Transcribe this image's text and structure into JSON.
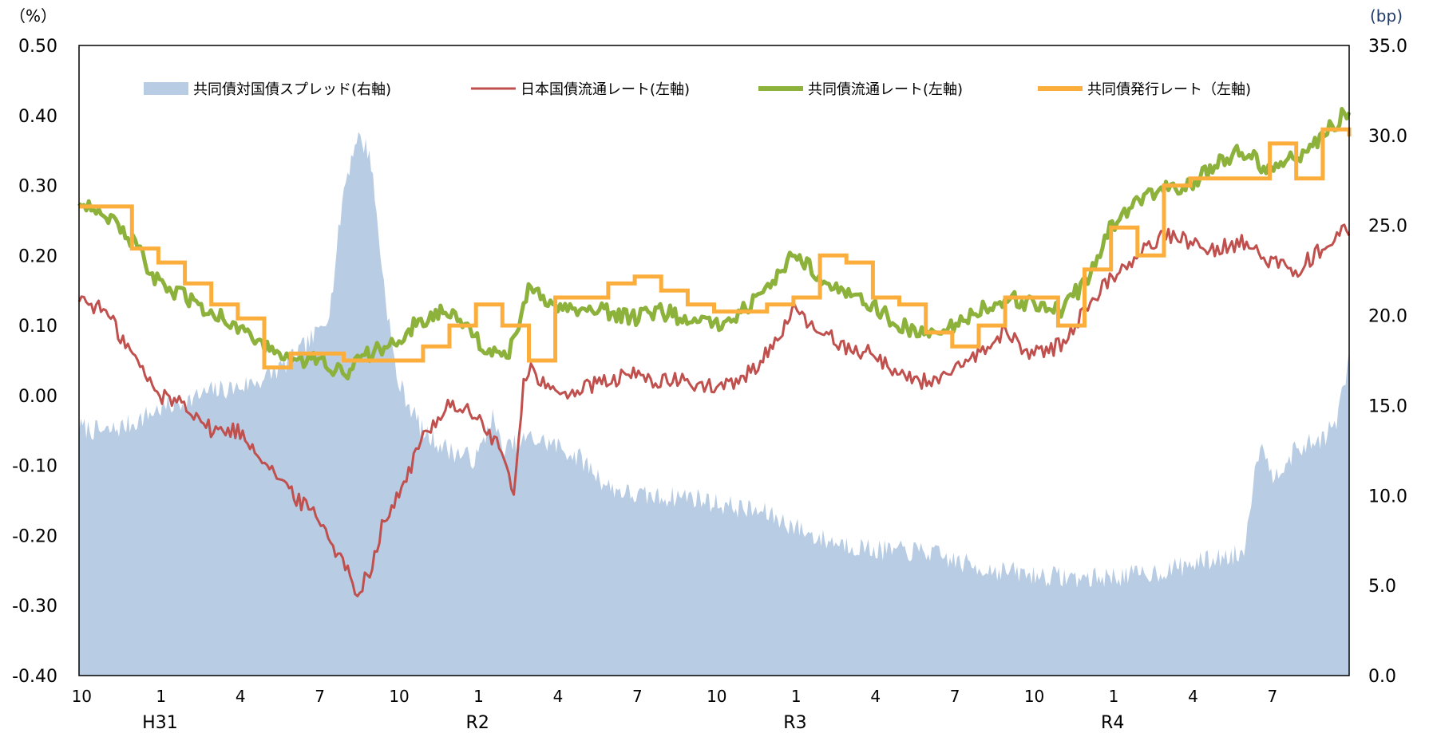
{
  "chart_data": {
    "type": "line",
    "y_left_unit": "（%）",
    "y_right_unit": "(bp)",
    "ylim_left": [
      -0.4,
      0.5
    ],
    "ylim_right": [
      0,
      35
    ],
    "y_left_ticks": [
      "0.50",
      "0.40",
      "0.30",
      "0.20",
      "0.10",
      "0.00",
      "-0.10",
      "-0.20",
      "-0.30",
      "-0.40"
    ],
    "y_right_ticks": [
      "35.0",
      "30.0",
      "25.0",
      "20.0",
      "15.0",
      "10.0",
      "5.0",
      "0.0"
    ],
    "x_month_ticks": [
      "10",
      "1",
      "4",
      "7",
      "10",
      "1",
      "4",
      "7",
      "10",
      "1",
      "4",
      "7",
      "10",
      "1",
      "4",
      "7"
    ],
    "x_era_labels": [
      "H31",
      "R2",
      "R3",
      "R4"
    ],
    "x_range_months": [
      0,
      48
    ],
    "legend_position": "top",
    "series": [
      {
        "name": "共同債対国債スプレッド(右軸)",
        "type": "area",
        "axis": "right",
        "color": "#b8cce4",
        "points": [
          [
            0,
            13.8
          ],
          [
            1,
            13.5
          ],
          [
            2,
            14.0
          ],
          [
            3,
            14.8
          ],
          [
            4,
            15.2
          ],
          [
            5,
            15.8
          ],
          [
            6,
            16.0
          ],
          [
            7,
            16.5
          ],
          [
            8,
            17.5
          ],
          [
            9,
            19.0
          ],
          [
            9.5,
            20.5
          ],
          [
            10,
            27.0
          ],
          [
            10.5,
            30.0
          ],
          [
            11,
            29.0
          ],
          [
            11.5,
            22.0
          ],
          [
            12,
            16.5
          ],
          [
            13,
            13.5
          ],
          [
            14,
            12.5
          ],
          [
            15,
            12.0
          ],
          [
            15.3,
            13.0
          ],
          [
            15.6,
            14.5
          ],
          [
            16,
            12.5
          ],
          [
            17,
            13.2
          ],
          [
            18,
            12.8
          ],
          [
            19,
            12.0
          ],
          [
            20,
            10.5
          ],
          [
            21,
            10.0
          ],
          [
            22,
            9.9
          ],
          [
            23,
            10.0
          ],
          [
            24,
            9.6
          ],
          [
            25,
            9.3
          ],
          [
            26,
            9.0
          ],
          [
            27,
            8.3
          ],
          [
            28,
            7.6
          ],
          [
            29,
            7.3
          ],
          [
            30,
            7.0
          ],
          [
            31,
            6.9
          ],
          [
            32,
            6.9
          ],
          [
            33,
            6.4
          ],
          [
            34,
            6.0
          ],
          [
            35,
            5.8
          ],
          [
            36,
            5.6
          ],
          [
            37,
            5.5
          ],
          [
            38,
            5.4
          ],
          [
            39,
            5.5
          ],
          [
            40,
            5.6
          ],
          [
            41,
            5.8
          ],
          [
            42,
            6.2
          ],
          [
            43,
            6.5
          ],
          [
            44,
            6.8
          ],
          [
            44.3,
            10.0
          ],
          [
            44.7,
            13.5
          ],
          [
            45,
            11.0
          ],
          [
            46,
            12.5
          ],
          [
            47,
            13.2
          ],
          [
            47.5,
            14.0
          ],
          [
            48,
            17.5
          ]
        ]
      },
      {
        "name": "日本国債流通レート(左軸)",
        "type": "line",
        "axis": "left",
        "color": "#c0504d",
        "points": [
          [
            0,
            0.14
          ],
          [
            1,
            0.12
          ],
          [
            2,
            0.06
          ],
          [
            3,
            0.0
          ],
          [
            4,
            -0.01
          ],
          [
            5,
            -0.05
          ],
          [
            6,
            -0.05
          ],
          [
            7,
            -0.09
          ],
          [
            8,
            -0.14
          ],
          [
            9,
            -0.17
          ],
          [
            10,
            -0.24
          ],
          [
            10.5,
            -0.28
          ],
          [
            11,
            -0.25
          ],
          [
            11.5,
            -0.18
          ],
          [
            12,
            -0.15
          ],
          [
            13,
            -0.06
          ],
          [
            14,
            -0.01
          ],
          [
            15,
            -0.03
          ],
          [
            16,
            -0.08
          ],
          [
            16.4,
            -0.15
          ],
          [
            16.8,
            0.02
          ],
          [
            17,
            0.04
          ],
          [
            18,
            0.0
          ],
          [
            19,
            0.01
          ],
          [
            20,
            0.02
          ],
          [
            21,
            0.03
          ],
          [
            22,
            0.02
          ],
          [
            23,
            0.02
          ],
          [
            24,
            0.01
          ],
          [
            25,
            0.02
          ],
          [
            26,
            0.06
          ],
          [
            27,
            0.12
          ],
          [
            28,
            0.09
          ],
          [
            29,
            0.07
          ],
          [
            30,
            0.06
          ],
          [
            31,
            0.03
          ],
          [
            32,
            0.02
          ],
          [
            33,
            0.03
          ],
          [
            34,
            0.06
          ],
          [
            35,
            0.09
          ],
          [
            36,
            0.06
          ],
          [
            37,
            0.07
          ],
          [
            38,
            0.12
          ],
          [
            39,
            0.17
          ],
          [
            40,
            0.2
          ],
          [
            41,
            0.23
          ],
          [
            42,
            0.22
          ],
          [
            43,
            0.21
          ],
          [
            44,
            0.22
          ],
          [
            45,
            0.19
          ],
          [
            46,
            0.18
          ],
          [
            47,
            0.21
          ],
          [
            48,
            0.24
          ]
        ]
      },
      {
        "name": "共同債流通レート(左軸)",
        "type": "line",
        "axis": "left",
        "color": "#8db23c",
        "points": [
          [
            0,
            0.28
          ],
          [
            1,
            0.26
          ],
          [
            2,
            0.22
          ],
          [
            3,
            0.16
          ],
          [
            4,
            0.14
          ],
          [
            5,
            0.12
          ],
          [
            6,
            0.1
          ],
          [
            7,
            0.07
          ],
          [
            8,
            0.05
          ],
          [
            9,
            0.05
          ],
          [
            10,
            0.03
          ],
          [
            11,
            0.06
          ],
          [
            12,
            0.08
          ],
          [
            13,
            0.11
          ],
          [
            14,
            0.12
          ],
          [
            15,
            0.08
          ],
          [
            16,
            0.05
          ],
          [
            16.5,
            0.08
          ],
          [
            17,
            0.15
          ],
          [
            18,
            0.13
          ],
          [
            19,
            0.12
          ],
          [
            20,
            0.12
          ],
          [
            21,
            0.11
          ],
          [
            22,
            0.12
          ],
          [
            23,
            0.11
          ],
          [
            24,
            0.1
          ],
          [
            25,
            0.12
          ],
          [
            26,
            0.15
          ],
          [
            27,
            0.2
          ],
          [
            28,
            0.17
          ],
          [
            29,
            0.15
          ],
          [
            30,
            0.13
          ],
          [
            31,
            0.1
          ],
          [
            32,
            0.09
          ],
          [
            33,
            0.1
          ],
          [
            34,
            0.12
          ],
          [
            35,
            0.14
          ],
          [
            36,
            0.13
          ],
          [
            37,
            0.12
          ],
          [
            38,
            0.16
          ],
          [
            39,
            0.24
          ],
          [
            40,
            0.28
          ],
          [
            41,
            0.3
          ],
          [
            42,
            0.3
          ],
          [
            43,
            0.33
          ],
          [
            44,
            0.35
          ],
          [
            45,
            0.32
          ],
          [
            46,
            0.34
          ],
          [
            47,
            0.37
          ],
          [
            48,
            0.41
          ]
        ]
      },
      {
        "name": "共同債発行レート（左軸)",
        "type": "step",
        "axis": "left",
        "color": "#fbae3c",
        "points": [
          [
            0,
            0.27
          ],
          [
            2,
            0.21
          ],
          [
            3,
            0.19
          ],
          [
            4,
            0.16
          ],
          [
            5,
            0.13
          ],
          [
            6,
            0.11
          ],
          [
            7,
            0.04
          ],
          [
            8,
            0.06
          ],
          [
            9,
            0.06
          ],
          [
            10,
            0.05
          ],
          [
            11,
            0.05
          ],
          [
            12,
            0.05
          ],
          [
            13,
            0.07
          ],
          [
            14,
            0.1
          ],
          [
            15,
            0.13
          ],
          [
            16,
            0.1
          ],
          [
            17,
            0.05
          ],
          [
            18,
            0.14
          ],
          [
            19,
            0.14
          ],
          [
            20,
            0.16
          ],
          [
            21,
            0.17
          ],
          [
            22,
            0.15
          ],
          [
            23,
            0.13
          ],
          [
            24,
            0.12
          ],
          [
            25,
            0.12
          ],
          [
            26,
            0.13
          ],
          [
            27,
            0.14
          ],
          [
            28,
            0.2
          ],
          [
            29,
            0.19
          ],
          [
            30,
            0.14
          ],
          [
            31,
            0.13
          ],
          [
            32,
            0.09
          ],
          [
            33,
            0.07
          ],
          [
            34,
            0.1
          ],
          [
            35,
            0.14
          ],
          [
            36,
            0.14
          ],
          [
            37,
            0.1
          ],
          [
            38,
            0.18
          ],
          [
            39,
            0.24
          ],
          [
            40,
            0.2
          ],
          [
            41,
            0.3
          ],
          [
            42,
            0.31
          ],
          [
            43,
            0.31
          ],
          [
            44,
            0.31
          ],
          [
            45,
            0.36
          ],
          [
            46,
            0.31
          ],
          [
            47,
            0.38
          ],
          [
            48,
            0.37
          ]
        ]
      }
    ]
  }
}
